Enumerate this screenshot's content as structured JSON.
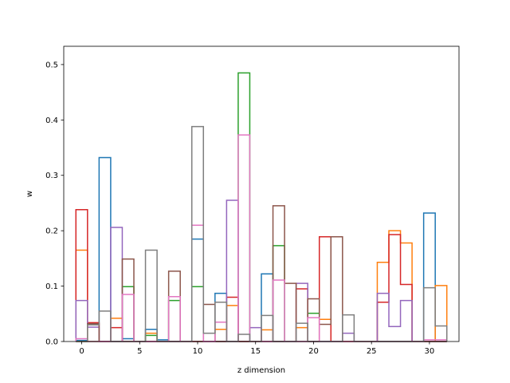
{
  "chart_data": {
    "type": "step",
    "xlabel": "z dimension",
    "ylabel": "w",
    "xlim": [
      -1.55,
      32.55
    ],
    "ylim": [
      0,
      0.533
    ],
    "xticks": [
      0,
      5,
      10,
      15,
      20,
      25,
      30
    ],
    "xtick_labels": [
      "0",
      "5",
      "10",
      "15",
      "20",
      "25",
      "30"
    ],
    "yticks": [
      0.0,
      0.1,
      0.2,
      0.3,
      0.4,
      0.5
    ],
    "ytick_labels": [
      "0.0",
      "0.1",
      "0.2",
      "0.3",
      "0.4",
      "0.5"
    ],
    "grid": false,
    "legend": false,
    "bins": [
      0,
      1,
      2,
      3,
      4,
      5,
      6,
      7,
      8,
      9,
      10,
      11,
      12,
      13,
      14,
      15,
      16,
      17,
      18,
      19,
      20,
      21,
      22,
      23,
      24,
      25,
      26,
      27,
      28,
      29,
      30,
      31
    ],
    "series": [
      {
        "color": "#1f77b4",
        "values": [
          0.002,
          0.0,
          0.332,
          0.0,
          0.005,
          0.0,
          0.022,
          0.003,
          0.0,
          0.0,
          0.185,
          0.0,
          0.087,
          0.0,
          0.0,
          0.0,
          0.122,
          0.0,
          0.0,
          0.0,
          0.0,
          0.0,
          0.0,
          0.0,
          0.0,
          0.0,
          0.0,
          0.0,
          0.0,
          0.0,
          0.232,
          0.0
        ]
      },
      {
        "color": "#ff7f0e",
        "values": [
          0.165,
          0.0,
          0.0,
          0.042,
          0.0,
          0.0,
          0.015,
          0.0,
          0.0,
          0.0,
          0.0,
          0.0,
          0.022,
          0.065,
          0.0,
          0.0,
          0.021,
          0.0,
          0.0,
          0.025,
          0.0,
          0.04,
          0.0,
          0.0,
          0.0,
          0.0,
          0.143,
          0.2,
          0.178,
          0.0,
          0.0,
          0.101
        ]
      },
      {
        "color": "#2ca02c",
        "values": [
          0.0,
          0.0,
          0.0,
          0.0,
          0.099,
          0.0,
          0.011,
          0.0,
          0.074,
          0.0,
          0.099,
          0.0,
          0.0,
          0.0,
          0.485,
          0.0,
          0.0,
          0.173,
          0.0,
          0.0,
          0.051,
          0.0,
          0.0,
          0.0,
          0.0,
          0.0,
          0.0,
          0.0,
          0.0,
          0.0,
          0.0,
          0.0
        ]
      },
      {
        "color": "#d62728",
        "values": [
          0.238,
          0.034,
          0.0,
          0.025,
          0.0,
          0.0,
          0.0,
          0.0,
          0.0,
          0.0,
          0.0,
          0.0,
          0.0,
          0.08,
          0.0,
          0.0,
          0.0,
          0.0,
          0.0,
          0.095,
          0.0,
          0.189,
          0.0,
          0.0,
          0.0,
          0.0,
          0.071,
          0.193,
          0.103,
          0.0,
          0.0,
          0.0
        ]
      },
      {
        "color": "#9467bd",
        "values": [
          0.074,
          0.026,
          0.0,
          0.206,
          0.0,
          0.0,
          0.0,
          0.0,
          0.0,
          0.0,
          0.0,
          0.0,
          0.0,
          0.255,
          0.0,
          0.025,
          0.0,
          0.0,
          0.0,
          0.105,
          0.0,
          0.0,
          0.0,
          0.015,
          0.0,
          0.0,
          0.087,
          0.027,
          0.074,
          0.0,
          0.0,
          0.0
        ]
      },
      {
        "color": "#8c564b",
        "values": [
          0.0,
          0.032,
          0.0,
          0.0,
          0.149,
          0.0,
          0.0,
          0.0,
          0.127,
          0.0,
          0.0,
          0.067,
          0.0,
          0.0,
          0.0,
          0.0,
          0.0,
          0.245,
          0.105,
          0.0,
          0.077,
          0.031,
          0.189,
          0.0,
          0.0,
          0.0,
          0.0,
          0.0,
          0.0,
          0.0,
          0.0,
          0.0
        ]
      },
      {
        "color": "#e377c2",
        "values": [
          0.005,
          0.0,
          0.0,
          0.0,
          0.085,
          0.0,
          0.0,
          0.0,
          0.081,
          0.0,
          0.21,
          0.0,
          0.035,
          0.0,
          0.373,
          0.0,
          0.0,
          0.111,
          0.0,
          0.0,
          0.043,
          0.0,
          0.0,
          0.0,
          0.0,
          0.0,
          0.0,
          0.0,
          0.0,
          0.0,
          0.003,
          0.003
        ]
      },
      {
        "color": "#7f7f7f",
        "values": [
          0.0,
          0.03,
          0.055,
          0.0,
          0.0,
          0.0,
          0.165,
          0.0,
          0.0,
          0.0,
          0.388,
          0.015,
          0.071,
          0.0,
          0.013,
          0.0,
          0.047,
          0.0,
          0.0,
          0.033,
          0.0,
          0.0,
          0.0,
          0.048,
          0.0,
          0.0,
          0.0,
          0.0,
          0.0,
          0.0,
          0.097,
          0.028
        ]
      }
    ]
  }
}
